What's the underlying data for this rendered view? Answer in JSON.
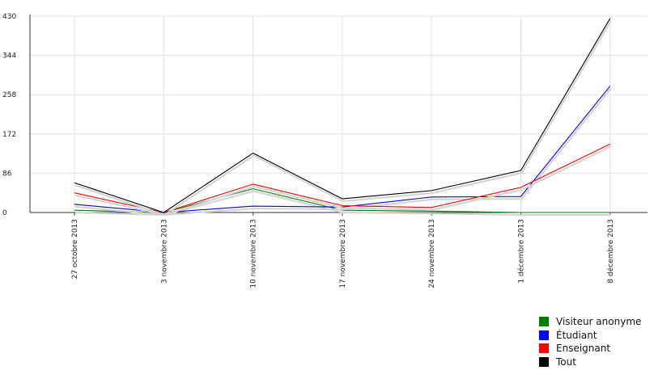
{
  "chart_data": {
    "type": "line",
    "x": [
      "27 octobre 2013",
      "3 novembre 2013",
      "10 novembre 2013",
      "17 novembre 2013",
      "24 novembre 2013",
      "1 décembre 2013",
      "8 décembre 2013"
    ],
    "yticks": [
      0,
      86,
      172,
      258,
      344,
      430
    ],
    "ylim": [
      0,
      430
    ],
    "grid": true,
    "legend_position": "bottom-right",
    "series": [
      {
        "name": "Visiteur anonyme",
        "color": "#008000",
        "values": [
          5,
          0,
          52,
          5,
          3,
          0,
          0
        ]
      },
      {
        "name": "Étudiant",
        "color": "#0000ff",
        "values": [
          18,
          0,
          14,
          12,
          34,
          35,
          277
        ]
      },
      {
        "name": "Enseignant",
        "color": "#ff0000",
        "values": [
          43,
          0,
          62,
          15,
          11,
          55,
          150
        ]
      },
      {
        "name": "Tout",
        "color": "#000000",
        "values": [
          65,
          0,
          130,
          30,
          48,
          92,
          425
        ]
      }
    ]
  }
}
